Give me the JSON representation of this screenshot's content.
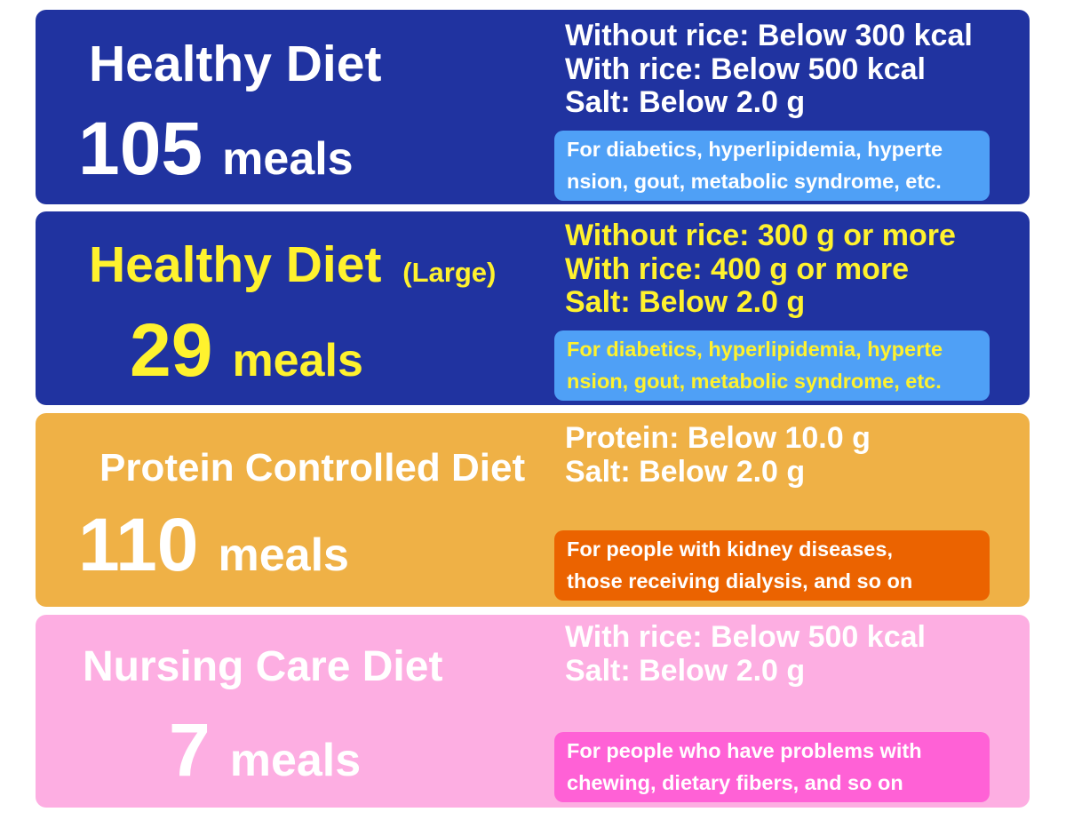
{
  "colors": {
    "navy": "#2033a0",
    "note_blue": "#4fa0f6",
    "yellow": "#fff22e",
    "amber": "#efb146",
    "orange_note": "#eb6300",
    "pink": "#fdaee2",
    "pink_note": "#ff61d6",
    "white": "#ffffff"
  },
  "cards": [
    {
      "title": "Healthy Diet",
      "count": "105",
      "unit": "meals",
      "specs": [
        "Without rice: Below 300 kcal",
        "With rice: Below 500 kcal",
        "Salt: Below 2.0 g"
      ],
      "note": [
        "For diabetics, hyperlipidemia, hyperte",
        "nsion, gout, metabolic syndrome, etc."
      ]
    },
    {
      "title": "Healthy Diet",
      "title_suffix": "(Large)",
      "count": "29",
      "unit": "meals",
      "specs": [
        "Without rice: 300 g or more",
        "With rice: 400 g or more",
        "Salt: Below 2.0 g"
      ],
      "note": [
        "For diabetics, hyperlipidemia, hyperte",
        "nsion, gout, metabolic syndrome, etc."
      ]
    },
    {
      "title": "Protein Controlled Diet",
      "count": "110",
      "unit": "meals",
      "specs": [
        "Protein: Below 10.0 g",
        "Salt: Below 2.0 g"
      ],
      "note": [
        "For people with kidney diseases,",
        "those receiving dialysis, and so on"
      ]
    },
    {
      "title": "Nursing Care Diet",
      "count": "7",
      "unit": "meals",
      "specs": [
        "With rice: Below 500 kcal",
        "Salt: Below 2.0 g"
      ],
      "note": [
        "For people who have problems with",
        "chewing, dietary fibers, and so on"
      ]
    }
  ]
}
